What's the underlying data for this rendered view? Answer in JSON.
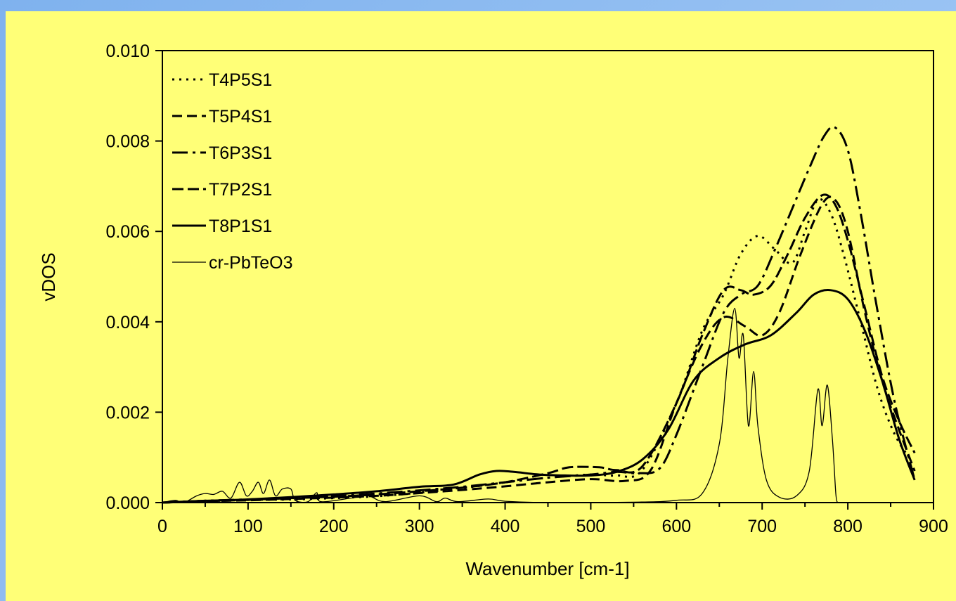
{
  "chart_data": {
    "type": "line",
    "title": "",
    "xlabel": "Wavenumber [cm-1]",
    "ylabel": "vDOS",
    "xlim": [
      0,
      900
    ],
    "ylim": [
      0,
      0.01
    ],
    "xticks": [
      "0",
      "100",
      "200",
      "300",
      "400",
      "500",
      "600",
      "700",
      "800",
      "900"
    ],
    "yticks": [
      "0.000",
      "0.002",
      "0.004",
      "0.006",
      "0.008",
      "0.010"
    ],
    "grid": false,
    "legend": "top-left",
    "series": [
      {
        "name": "T4P5S1",
        "dash": "3,7",
        "width": 3,
        "points": [
          [
            0,
            0
          ],
          [
            50,
            4e-05
          ],
          [
            100,
            6e-05
          ],
          [
            150,
            7e-05
          ],
          [
            200,
            0.0001
          ],
          [
            250,
            0.00014
          ],
          [
            300,
            0.00022
          ],
          [
            350,
            0.00032
          ],
          [
            400,
            0.00045
          ],
          [
            450,
            0.00055
          ],
          [
            500,
            0.00062
          ],
          [
            530,
            0.0006
          ],
          [
            560,
            0.00072
          ],
          [
            600,
            0.0022
          ],
          [
            630,
            0.0038
          ],
          [
            655,
            0.0046
          ],
          [
            675,
            0.0055
          ],
          [
            695,
            0.0059
          ],
          [
            715,
            0.0056
          ],
          [
            735,
            0.0053
          ],
          [
            750,
            0.006
          ],
          [
            765,
            0.0067
          ],
          [
            780,
            0.0064
          ],
          [
            795,
            0.0055
          ],
          [
            815,
            0.004
          ],
          [
            835,
            0.0025
          ],
          [
            855,
            0.0015
          ],
          [
            875,
            0.0009
          ]
        ]
      },
      {
        "name": "T5P4S1",
        "dash": "14,7",
        "width": 3,
        "points": [
          [
            0,
            0
          ],
          [
            50,
            3e-05
          ],
          [
            100,
            5e-05
          ],
          [
            150,
            8e-05
          ],
          [
            200,
            0.00011
          ],
          [
            250,
            0.00015
          ],
          [
            300,
            0.00021
          ],
          [
            350,
            0.00028
          ],
          [
            400,
            0.00036
          ],
          [
            450,
            0.00045
          ],
          [
            500,
            0.00052
          ],
          [
            540,
            0.00048
          ],
          [
            570,
            0.00072
          ],
          [
            600,
            0.0022
          ],
          [
            630,
            0.0035
          ],
          [
            655,
            0.0041
          ],
          [
            680,
            0.0039
          ],
          [
            700,
            0.0037
          ],
          [
            720,
            0.0042
          ],
          [
            745,
            0.0055
          ],
          [
            770,
            0.0066
          ],
          [
            785,
            0.0067
          ],
          [
            800,
            0.006
          ],
          [
            820,
            0.0042
          ],
          [
            840,
            0.0027
          ],
          [
            860,
            0.0016
          ],
          [
            878,
            0.0007
          ]
        ]
      },
      {
        "name": "T6P3S1",
        "dash": "22,7,4,7",
        "width": 3,
        "points": [
          [
            0,
            0
          ],
          [
            50,
            4e-05
          ],
          [
            100,
            7e-05
          ],
          [
            150,
            0.0001
          ],
          [
            200,
            0.00014
          ],
          [
            250,
            0.0002
          ],
          [
            300,
            0.00027
          ],
          [
            350,
            0.00035
          ],
          [
            400,
            0.00045
          ],
          [
            450,
            0.00055
          ],
          [
            500,
            0.00062
          ],
          [
            530,
            0.00068
          ],
          [
            555,
            0.00065
          ],
          [
            580,
            0.00075
          ],
          [
            600,
            0.0015
          ],
          [
            630,
            0.003
          ],
          [
            655,
            0.0042
          ],
          [
            675,
            0.0046
          ],
          [
            695,
            0.0048
          ],
          [
            715,
            0.0056
          ],
          [
            735,
            0.0065
          ],
          [
            755,
            0.0074
          ],
          [
            772,
            0.0081
          ],
          [
            785,
            0.0083
          ],
          [
            800,
            0.0078
          ],
          [
            815,
            0.0064
          ],
          [
            835,
            0.0042
          ],
          [
            855,
            0.0022
          ],
          [
            878,
            0.0005
          ]
        ]
      },
      {
        "name": "T7P2S1",
        "dash": "16,6",
        "width": 3,
        "points": [
          [
            0,
            0
          ],
          [
            50,
            3e-05
          ],
          [
            100,
            6e-05
          ],
          [
            150,
            0.0001
          ],
          [
            200,
            0.00013
          ],
          [
            250,
            0.00018
          ],
          [
            300,
            0.00025
          ],
          [
            350,
            0.00033
          ],
          [
            400,
            0.00045
          ],
          [
            450,
            0.00065
          ],
          [
            475,
            0.00078
          ],
          [
            510,
            0.00078
          ],
          [
            530,
            0.00072
          ],
          [
            560,
            0.0008
          ],
          [
            600,
            0.0022
          ],
          [
            630,
            0.0037
          ],
          [
            655,
            0.0047
          ],
          [
            675,
            0.0047
          ],
          [
            690,
            0.0046
          ],
          [
            710,
            0.0048
          ],
          [
            730,
            0.0055
          ],
          [
            750,
            0.0063
          ],
          [
            770,
            0.0068
          ],
          [
            785,
            0.0066
          ],
          [
            800,
            0.0058
          ],
          [
            820,
            0.0043
          ],
          [
            840,
            0.0028
          ],
          [
            860,
            0.0018
          ],
          [
            878,
            0.0011
          ]
        ]
      },
      {
        "name": "T8P1S1",
        "dash": "",
        "width": 3,
        "points": [
          [
            0,
            0
          ],
          [
            50,
            4e-05
          ],
          [
            100,
            7e-05
          ],
          [
            150,
            0.00012
          ],
          [
            200,
            0.00018
          ],
          [
            250,
            0.00025
          ],
          [
            300,
            0.00035
          ],
          [
            340,
            0.0004
          ],
          [
            370,
            0.00062
          ],
          [
            390,
            0.0007
          ],
          [
            410,
            0.00068
          ],
          [
            440,
            0.00062
          ],
          [
            470,
            0.0006
          ],
          [
            500,
            0.0006
          ],
          [
            530,
            0.00068
          ],
          [
            560,
            0.00095
          ],
          [
            590,
            0.0016
          ],
          [
            620,
            0.0027
          ],
          [
            650,
            0.0032
          ],
          [
            680,
            0.0035
          ],
          [
            710,
            0.0037
          ],
          [
            740,
            0.0042
          ],
          [
            760,
            0.0046
          ],
          [
            780,
            0.0047
          ],
          [
            800,
            0.0045
          ],
          [
            820,
            0.0038
          ],
          [
            840,
            0.0027
          ],
          [
            860,
            0.0014
          ],
          [
            878,
            0.0005
          ]
        ]
      },
      {
        "name": "cr-PbTeO3",
        "dash": "",
        "width": 1.3,
        "points": [
          [
            0,
            0
          ],
          [
            15,
            5e-05
          ],
          [
            25,
            0
          ],
          [
            40,
            0.00015
          ],
          [
            50,
            0.0002
          ],
          [
            60,
            0.00018
          ],
          [
            70,
            0.00025
          ],
          [
            80,
            0.0001
          ],
          [
            90,
            0.00045
          ],
          [
            98,
            0.00015
          ],
          [
            105,
            0.00025
          ],
          [
            112,
            0.00045
          ],
          [
            118,
            0.0002
          ],
          [
            125,
            0.0005
          ],
          [
            132,
            0.00015
          ],
          [
            140,
            0.0003
          ],
          [
            150,
            0.0003
          ],
          [
            155,
            5e-05
          ],
          [
            170,
            2e-05
          ],
          [
            180,
            0.00022
          ],
          [
            185,
            2e-05
          ],
          [
            220,
            0.0001
          ],
          [
            240,
            0.00015
          ],
          [
            260,
            2e-05
          ],
          [
            300,
            0.00015
          ],
          [
            320,
            2e-05
          ],
          [
            330,
            0.0001
          ],
          [
            345,
            2e-05
          ],
          [
            380,
            8e-05
          ],
          [
            400,
            3e-05
          ],
          [
            450,
            0
          ],
          [
            550,
            1e-05
          ],
          [
            600,
            5e-05
          ],
          [
            630,
            0.0002
          ],
          [
            650,
            0.0013
          ],
          [
            660,
            0.0032
          ],
          [
            668,
            0.0043
          ],
          [
            673,
            0.0032
          ],
          [
            678,
            0.0037
          ],
          [
            684,
            0.0017
          ],
          [
            690,
            0.0029
          ],
          [
            695,
            0.0017
          ],
          [
            705,
            0.0005
          ],
          [
            720,
            0.00012
          ],
          [
            740,
            0.00015
          ],
          [
            755,
            0.0007
          ],
          [
            765,
            0.0025
          ],
          [
            770,
            0.0017
          ],
          [
            776,
            0.0026
          ],
          [
            782,
            0.0014
          ],
          [
            786,
            0.0002
          ],
          [
            788,
            0
          ]
        ]
      }
    ]
  }
}
